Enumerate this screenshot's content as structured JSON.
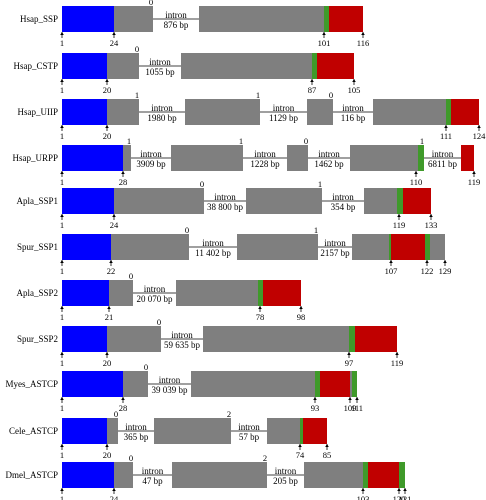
{
  "colors": {
    "signal": "#0000ff",
    "body": "#7f7f7f",
    "green": "#3f9a2a",
    "red": "#c00000",
    "axis": "#000000"
  },
  "genes": [
    {
      "name": "Hsap_SSP",
      "marks": [
        "1",
        "24",
        "101",
        "116"
      ],
      "introns": [
        {
          "label": "intron",
          "size": "876 bp",
          "phase": "0"
        }
      ]
    },
    {
      "name": "Hsap_CSTP",
      "marks": [
        "1",
        "20",
        "87",
        "105"
      ],
      "introns": [
        {
          "label": "intron",
          "size": "1055 bp",
          "phase": "0"
        }
      ]
    },
    {
      "name": "Hsap_UIIP",
      "marks": [
        "1",
        "20",
        "111",
        "124"
      ],
      "introns": [
        {
          "label": "intron",
          "size": "1980 bp",
          "phase": "1"
        },
        {
          "label": "intron",
          "size": "1129 bp",
          "phase": "1"
        },
        {
          "label": "intron",
          "size": "116 bp",
          "phase": "0"
        }
      ]
    },
    {
      "name": "Hsap_URPP",
      "marks": [
        "1",
        "28",
        "110",
        "119"
      ],
      "introns": [
        {
          "label": "intron",
          "size": "3909 bp",
          "phase": "1"
        },
        {
          "label": "intron",
          "size": "1228 bp",
          "phase": "1"
        },
        {
          "label": "intron",
          "size": "1462 bp",
          "phase": "0"
        },
        {
          "label": "intron",
          "size": "6811 bp",
          "phase": "1"
        }
      ]
    },
    {
      "name": "Apla_SSP1",
      "marks": [
        "1",
        "24",
        "119",
        "133"
      ],
      "introns": [
        {
          "label": "intron",
          "size": "38 800 bp",
          "phase": "0"
        },
        {
          "label": "intron",
          "size": "354 bp",
          "phase": "1"
        }
      ]
    },
    {
      "name": "Spur_SSP1",
      "marks": [
        "1",
        "22",
        "107",
        "122",
        "129"
      ],
      "introns": [
        {
          "label": "intron",
          "size": "11 402 bp",
          "phase": "0"
        },
        {
          "label": "intron",
          "size": "2157 bp",
          "phase": "1"
        }
      ]
    },
    {
      "name": "Apla_SSP2",
      "marks": [
        "1",
        "21",
        "78",
        "98"
      ],
      "introns": [
        {
          "label": "intron",
          "size": "20 070 bp",
          "phase": "0"
        }
      ]
    },
    {
      "name": "Spur_SSP2",
      "marks": [
        "1",
        "20",
        "97",
        "119"
      ],
      "introns": [
        {
          "label": "intron",
          "size": "59 635 bp",
          "phase": "0"
        }
      ]
    },
    {
      "name": "Myes_ASTCP",
      "marks": [
        "1",
        "28",
        "93",
        "109",
        "111"
      ],
      "introns": [
        {
          "label": "intron",
          "size": "39 039 bp",
          "phase": "0"
        }
      ]
    },
    {
      "name": "Cele_ASTCP",
      "marks": [
        "1",
        "20",
        "74",
        "85"
      ],
      "introns": [
        {
          "label": "intron",
          "size": "365 bp",
          "phase": "0"
        },
        {
          "label": "intron",
          "size": "57 bp",
          "phase": "2"
        }
      ]
    },
    {
      "name": "Dmel_ASTCP",
      "marks": [
        "1",
        "24",
        "103",
        "120",
        "121"
      ],
      "introns": [
        {
          "label": "intron",
          "size": "47 bp",
          "phase": "0"
        },
        {
          "label": "intron",
          "size": "205 bp",
          "phase": "2"
        }
      ]
    }
  ]
}
